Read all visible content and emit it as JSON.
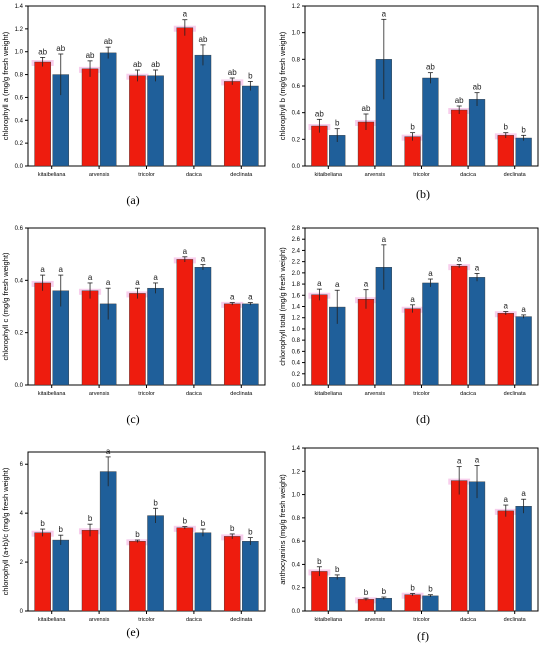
{
  "colors": {
    "red": "#ee1c0e",
    "blue": "#1f5f9a",
    "highlight": "#f3a6dc",
    "sig_red": "#c4006a"
  },
  "chart_data": [
    {
      "type": "bar",
      "panel_label": "(a)",
      "ylabel": "chlorophyll a (mg/g fresh weight)",
      "ylim": [
        0,
        1.4
      ],
      "yticks": [
        "0.0",
        "0.2",
        "0.4",
        "0.6",
        "0.8",
        "1.0",
        "1.2",
        "1.4"
      ],
      "categories": [
        "kitaibeliana",
        "arvensis",
        "tricolor",
        "dacica",
        "declinata"
      ],
      "series": [
        {
          "values": [
            0.91,
            0.85,
            0.79,
            1.21,
            0.74
          ],
          "errors": [
            0.04,
            0.07,
            0.05,
            0.07,
            0.03
          ],
          "labels": [
            "ab",
            "ab",
            "ab",
            "a",
            "ab"
          ]
        },
        {
          "values": [
            0.8,
            0.99,
            0.79,
            0.97,
            0.7
          ],
          "errors": [
            0.18,
            0.05,
            0.05,
            0.09,
            0.04
          ],
          "labels": [
            "ab",
            "ab",
            "ab",
            "ab",
            "b"
          ]
        }
      ]
    },
    {
      "type": "bar",
      "panel_label": "(b)",
      "ylabel": "chlorophyll b (mg/g fresh weight)",
      "ylim": [
        0,
        1.2
      ],
      "yticks": [
        "0.0",
        "0.2",
        "0.4",
        "0.6",
        "0.8",
        "1.0",
        "1.2"
      ],
      "categories": [
        "kitaibeliana",
        "arvensis",
        "tricolor",
        "dacica",
        "declinata"
      ],
      "series": [
        {
          "values": [
            0.3,
            0.33,
            0.22,
            0.42,
            0.23
          ],
          "errors": [
            0.05,
            0.06,
            0.03,
            0.03,
            0.02
          ],
          "labels": [
            "ab",
            "ab",
            "b",
            "ab",
            "b"
          ]
        },
        {
          "values": [
            0.23,
            0.8,
            0.66,
            0.5,
            0.21
          ],
          "errors": [
            0.05,
            0.3,
            0.04,
            0.05,
            0.02
          ],
          "labels": [
            "b",
            "a",
            "ab",
            "ab",
            "b"
          ]
        }
      ]
    },
    {
      "type": "bar",
      "panel_label": "(c)",
      "ylabel": "chlorophyll c (mg/g fresh weight)",
      "ylim": [
        0,
        0.6
      ],
      "yticks": [
        "0.0",
        "0.2",
        "0.4",
        "0.6"
      ],
      "categories": [
        "kitaibeliana",
        "arvensis",
        "tricolor",
        "dacica",
        "declinata"
      ],
      "series": [
        {
          "values": [
            0.39,
            0.36,
            0.35,
            0.48,
            0.31
          ],
          "errors": [
            0.03,
            0.03,
            0.02,
            0.01,
            0.005
          ],
          "labels": [
            "a",
            "a",
            "a",
            "a",
            "a"
          ]
        },
        {
          "values": [
            0.36,
            0.31,
            0.37,
            0.45,
            0.31
          ],
          "errors": [
            0.06,
            0.06,
            0.02,
            0.01,
            0.005
          ],
          "labels": [
            "a",
            "a",
            "a",
            "a",
            "a"
          ]
        }
      ]
    },
    {
      "type": "bar",
      "panel_label": "(d)",
      "ylabel": "chlorophyll total (mg/g fresh weight)",
      "ylim": [
        0,
        2.8
      ],
      "yticks": [
        "0.0",
        "0.2",
        "0.4",
        "0.6",
        "0.8",
        "1.0",
        "1.2",
        "1.4",
        "1.6",
        "1.8",
        "2.0",
        "2.2",
        "2.4",
        "2.6",
        "2.8"
      ],
      "categories": [
        "kitaibeliana",
        "arvensis",
        "tricolor",
        "dacica",
        "declinata"
      ],
      "series": [
        {
          "values": [
            1.61,
            1.53,
            1.36,
            2.12,
            1.28
          ],
          "errors": [
            0.1,
            0.17,
            0.07,
            0.03,
            0.03
          ],
          "labels": [
            "a",
            "a",
            "a",
            "a",
            "a"
          ]
        },
        {
          "values": [
            1.39,
            2.1,
            1.82,
            1.92,
            1.22
          ],
          "errors": [
            0.3,
            0.4,
            0.07,
            0.07,
            0.03
          ],
          "labels": [
            "a",
            "a",
            "a",
            "a",
            "a"
          ]
        }
      ]
    },
    {
      "type": "bar",
      "panel_label": "(e)",
      "ylabel": "chlorophyll (a+b)/c (mg/g fresh weight)",
      "ylim": [
        0,
        6.5
      ],
      "yticks": [
        "0",
        "2",
        "4",
        "6"
      ],
      "categories": [
        "kitaibeliana",
        "arvensis",
        "tricolor",
        "dacica",
        "declinata"
      ],
      "series": [
        {
          "values": [
            3.2,
            3.3,
            2.85,
            3.4,
            3.05
          ],
          "errors": [
            0.15,
            0.25,
            0.05,
            0.05,
            0.1
          ],
          "labels": [
            "b",
            "b",
            "b",
            "b",
            "b"
          ]
        },
        {
          "values": [
            2.9,
            5.7,
            3.9,
            3.2,
            2.85
          ],
          "errors": [
            0.2,
            0.6,
            0.3,
            0.15,
            0.15
          ],
          "labels": [
            "b",
            "a",
            "b",
            "b",
            "b"
          ]
        }
      ]
    },
    {
      "type": "bar",
      "panel_label": "(f)",
      "ylabel": "anthocyanins (mg/g fresh weight)",
      "ylim": [
        0,
        1.4
      ],
      "yticks": [
        "0.0",
        "0.2",
        "0.4",
        "0.6",
        "0.8",
        "1.0",
        "1.2",
        "1.4"
      ],
      "categories": [
        "kitaibeliana",
        "arvensis",
        "tricolor",
        "dacica",
        "declinata"
      ],
      "series": [
        {
          "values": [
            0.34,
            0.1,
            0.14,
            1.12,
            0.86
          ],
          "errors": [
            0.04,
            0.01,
            0.01,
            0.12,
            0.05
          ],
          "labels": [
            "b",
            "b",
            "b",
            "a",
            "a"
          ]
        },
        {
          "values": [
            0.29,
            0.11,
            0.13,
            1.11,
            0.9
          ],
          "errors": [
            0.02,
            0.01,
            0.01,
            0.14,
            0.06
          ],
          "labels": [
            "b",
            "b",
            "b",
            "a",
            "a"
          ]
        }
      ]
    }
  ]
}
